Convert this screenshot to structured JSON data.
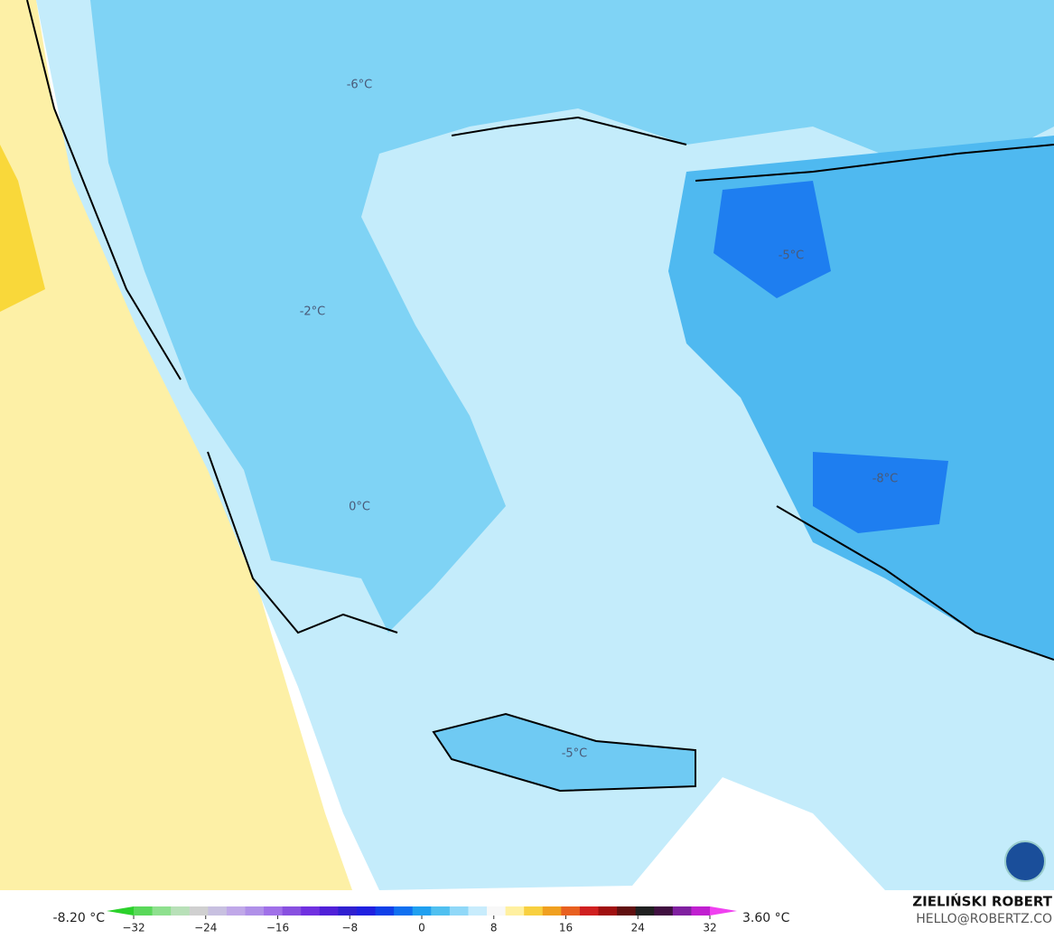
{
  "map": {
    "labels": [
      "-6°C",
      "-2°C",
      "-5°C",
      "-8°C",
      "0°C",
      "-5°C"
    ]
  },
  "colorbar": {
    "min_label": "-8.20 °C",
    "max_label": "3.60 °C",
    "ticks": [
      {
        "value": -32,
        "label": "−32"
      },
      {
        "value": -24,
        "label": "−24"
      },
      {
        "value": -16,
        "label": "−16"
      },
      {
        "value": -8,
        "label": "−8"
      },
      0,
      8,
      16,
      24,
      32
    ],
    "colors": [
      "#2bd12b",
      "#5ad85a",
      "#8ee08e",
      "#b8e0b8",
      "#d0d0d0",
      "#c8c0e0",
      "#c0a8e8",
      "#b090e8",
      "#a070e8",
      "#8850e0",
      "#7030e0",
      "#5020d8",
      "#3020d0",
      "#2020e0",
      "#1040e8",
      "#1070f0",
      "#20a0f0",
      "#50c0f0",
      "#90d8f8",
      "#c8ecfc",
      "#f8f8f8",
      "#fff0a0",
      "#f8d040",
      "#f0a020",
      "#e86020",
      "#d02020",
      "#a01010",
      "#601010",
      "#202020",
      "#401040",
      "#8020a0",
      "#c020d0",
      "#f040f0"
    ]
  },
  "credit": {
    "author": "ZIELIŃSKI ROBERT",
    "email": "HELLO@ROBERTZ.CO"
  }
}
